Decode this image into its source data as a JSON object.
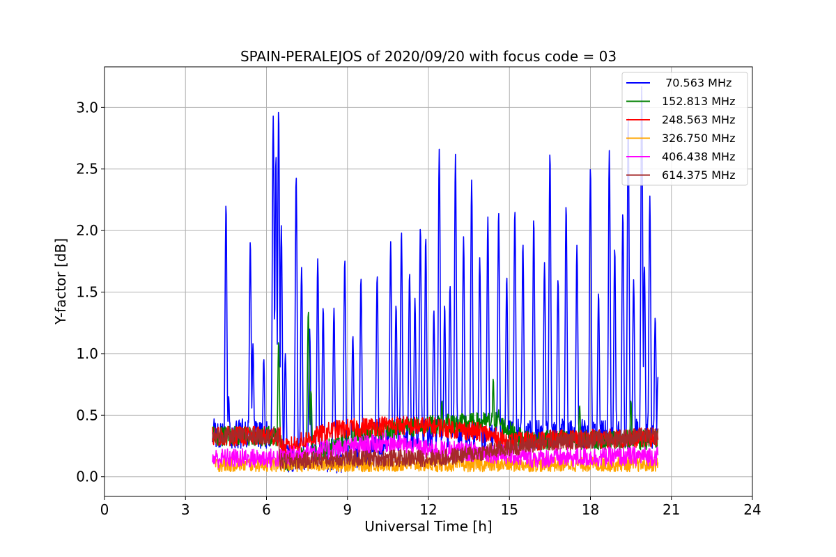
{
  "chart_data": {
    "type": "line",
    "title": "SPAIN-PERALEJOS of 2020/09/20 with focus code = 03",
    "xlabel": "Universal Time [h]",
    "ylabel": "Y-factor [dB]",
    "xlim": [
      0,
      24
    ],
    "ylim": [
      -0.16,
      3.33
    ],
    "x_ticks": [
      0,
      3,
      6,
      9,
      12,
      15,
      18,
      21,
      24
    ],
    "x_tick_labels": [
      "0",
      "3",
      "6",
      "9",
      "12",
      "15",
      "18",
      "21",
      "24"
    ],
    "y_ticks": [
      0.0,
      0.5,
      1.0,
      1.5,
      2.0,
      2.5,
      3.0
    ],
    "y_tick_labels": [
      "0.0",
      "0.5",
      "1.0",
      "1.5",
      "2.0",
      "2.5",
      "3.0"
    ],
    "grid": true,
    "legend_position": "top-right",
    "time_range": [
      4.0,
      20.5
    ],
    "series": [
      {
        "name": " 70.563 MHz",
        "color": "#0000ff",
        "baseline": [
          [
            4.0,
            0.35
          ],
          [
            6.5,
            0.35
          ],
          [
            6.6,
            0.15
          ],
          [
            9.5,
            0.15
          ],
          [
            10.5,
            0.3
          ],
          [
            15,
            0.35
          ],
          [
            20.5,
            0.35
          ]
        ],
        "noise": 0.12,
        "peaks": [
          [
            4.5,
            2.22
          ],
          [
            4.6,
            0.65
          ],
          [
            5.4,
            1.92
          ],
          [
            5.5,
            1.08
          ],
          [
            5.9,
            0.96
          ],
          [
            6.25,
            2.93
          ],
          [
            6.35,
            2.62
          ],
          [
            6.45,
            2.99
          ],
          [
            6.55,
            2.04
          ],
          [
            6.7,
            1.0
          ],
          [
            7.1,
            2.45
          ],
          [
            7.3,
            1.7
          ],
          [
            7.6,
            1.2
          ],
          [
            7.9,
            1.77
          ],
          [
            8.1,
            1.38
          ],
          [
            8.5,
            1.37
          ],
          [
            8.9,
            1.77
          ],
          [
            9.2,
            1.15
          ],
          [
            9.5,
            1.62
          ],
          [
            10.1,
            1.64
          ],
          [
            10.6,
            1.91
          ],
          [
            10.8,
            1.4
          ],
          [
            11.0,
            2.0
          ],
          [
            11.3,
            1.66
          ],
          [
            11.5,
            1.45
          ],
          [
            11.7,
            2.03
          ],
          [
            11.9,
            1.95
          ],
          [
            12.2,
            1.36
          ],
          [
            12.4,
            2.66
          ],
          [
            12.6,
            1.4
          ],
          [
            12.8,
            1.56
          ],
          [
            13.0,
            2.62
          ],
          [
            13.3,
            1.95
          ],
          [
            13.6,
            2.41
          ],
          [
            13.9,
            1.78
          ],
          [
            14.2,
            2.11
          ],
          [
            14.6,
            2.16
          ],
          [
            14.9,
            1.63
          ],
          [
            15.2,
            2.17
          ],
          [
            15.5,
            1.9
          ],
          [
            15.9,
            2.1
          ],
          [
            16.3,
            1.74
          ],
          [
            16.5,
            2.64
          ],
          [
            16.8,
            1.61
          ],
          [
            17.1,
            2.21
          ],
          [
            17.5,
            1.88
          ],
          [
            18.0,
            2.52
          ],
          [
            18.3,
            1.5
          ],
          [
            18.7,
            2.65
          ],
          [
            18.9,
            1.86
          ],
          [
            19.2,
            2.15
          ],
          [
            19.4,
            2.94
          ],
          [
            19.6,
            1.6
          ],
          [
            19.9,
            3.17
          ],
          [
            20.0,
            1.72
          ],
          [
            20.2,
            2.28
          ],
          [
            20.4,
            1.3
          ],
          [
            20.5,
            0.81
          ]
        ]
      },
      {
        "name": "152.813 MHz",
        "color": "#008000",
        "baseline": [
          [
            4.0,
            0.33
          ],
          [
            6.5,
            0.33
          ],
          [
            6.6,
            0.12
          ],
          [
            8.0,
            0.2
          ],
          [
            9.5,
            0.35
          ],
          [
            12,
            0.42
          ],
          [
            14.5,
            0.45
          ],
          [
            15.5,
            0.3
          ],
          [
            20.5,
            0.3
          ]
        ],
        "noise": 0.08,
        "peaks": [
          [
            6.45,
            1.1
          ],
          [
            7.55,
            1.35
          ],
          [
            7.65,
            0.7
          ],
          [
            12.5,
            0.62
          ],
          [
            14.4,
            0.8
          ],
          [
            14.6,
            0.55
          ],
          [
            17.6,
            0.58
          ],
          [
            19.5,
            0.62
          ]
        ]
      },
      {
        "name": "248.563 MHz",
        "color": "#ff0000",
        "baseline": [
          [
            4.0,
            0.33
          ],
          [
            6.5,
            0.33
          ],
          [
            6.6,
            0.22
          ],
          [
            7.5,
            0.3
          ],
          [
            8.5,
            0.38
          ],
          [
            10.5,
            0.42
          ],
          [
            12.5,
            0.4
          ],
          [
            14.0,
            0.36
          ],
          [
            15.0,
            0.28
          ],
          [
            16.5,
            0.3
          ],
          [
            20.5,
            0.32
          ]
        ],
        "noise": 0.08,
        "peaks": []
      },
      {
        "name": "326.750 MHz",
        "color": "#ffa500",
        "baseline": [
          [
            4.0,
            0.1
          ],
          [
            20.5,
            0.1
          ]
        ],
        "noise": 0.06,
        "peaks": []
      },
      {
        "name": "406.438 MHz",
        "color": "#ff00ff",
        "baseline": [
          [
            4.0,
            0.15
          ],
          [
            6.5,
            0.15
          ],
          [
            7.5,
            0.2
          ],
          [
            10.5,
            0.28
          ],
          [
            12.0,
            0.22
          ],
          [
            14.0,
            0.2
          ],
          [
            16.0,
            0.15
          ],
          [
            20.5,
            0.17
          ]
        ],
        "noise": 0.08,
        "peaks": []
      },
      {
        "name": "614.375 MHz",
        "color": "#a52a2a",
        "baseline": [
          [
            4.0,
            0.33
          ],
          [
            6.45,
            0.33
          ],
          [
            6.5,
            0.12
          ],
          [
            9.0,
            0.15
          ],
          [
            12.5,
            0.15
          ],
          [
            14.0,
            0.2
          ],
          [
            16.0,
            0.27
          ],
          [
            18.0,
            0.3
          ],
          [
            20.5,
            0.33
          ]
        ],
        "noise": 0.07,
        "peaks": []
      }
    ]
  }
}
